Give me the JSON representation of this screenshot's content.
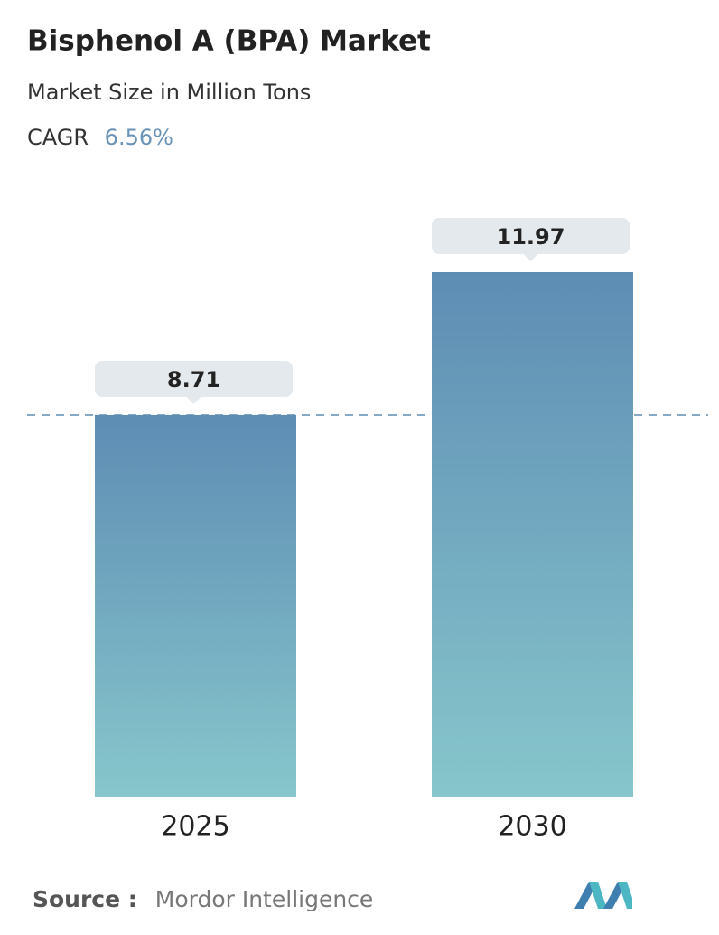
{
  "chart_data": {
    "type": "bar",
    "title": "Bisphenol A (BPA) Market",
    "subtitle": "Market Size in Million Tons",
    "cagr": {
      "label": "CAGR",
      "value": "6.56%"
    },
    "categories": [
      "2025",
      "2030"
    ],
    "values": [
      8.71,
      11.97
    ],
    "gradient": [
      "#5e8db4",
      "#87c6cc"
    ],
    "reference_line": true,
    "source": {
      "label": "Source :",
      "value": "Mordor Intelligence"
    }
  }
}
